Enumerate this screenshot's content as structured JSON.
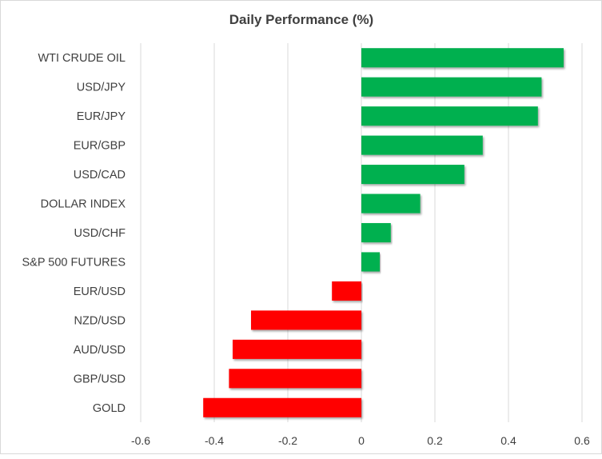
{
  "chart_data": {
    "type": "bar",
    "orientation": "horizontal",
    "title": "Daily Performance (%)",
    "xlabel": "",
    "ylabel": "",
    "categories": [
      "WTI CRUDE OIL",
      "USD/JPY",
      "EUR/JPY",
      "EUR/GBP",
      "USD/CAD",
      "DOLLAR INDEX",
      "USD/CHF",
      "S&P 500 FUTURES",
      "EUR/USD",
      "NZD/USD",
      "AUD/USD",
      "GBP/USD",
      "GOLD"
    ],
    "values": [
      0.55,
      0.49,
      0.48,
      0.33,
      0.28,
      0.16,
      0.08,
      0.05,
      -0.08,
      -0.3,
      -0.35,
      -0.36,
      -0.43
    ],
    "xlim": [
      -0.6,
      0.6
    ],
    "xticks": [
      "-0.6",
      "-0.4",
      "-0.2",
      "0",
      "0.2",
      "0.4",
      "0.6"
    ],
    "grid": "vertical",
    "legend": "none",
    "colors": {
      "positive": "#00B050",
      "negative": "#FF0000",
      "grid": "#d9d9d9"
    }
  }
}
